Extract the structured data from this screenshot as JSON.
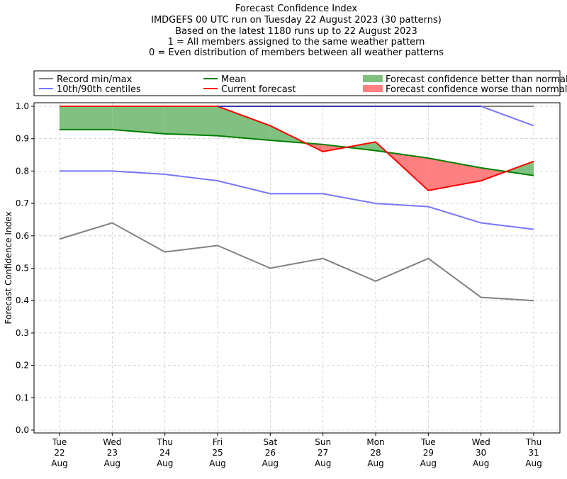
{
  "chart_data": {
    "type": "line",
    "title_lines": [
      "Forecast Confidence Index",
      "IMDGEFS 00 UTC run on Tuesday 22 August 2023 (30 patterns)",
      "Based on the latest 1180 runs up to 22 August 2023",
      "1 = All members assigned to the same weather pattern",
      "0 = Even distribution of members between all weather patterns"
    ],
    "ylabel": "Forecast Confidence Index",
    "ylim": [
      -0.01,
      1.01
    ],
    "yticks": [
      "0.0",
      "0.1",
      "0.2",
      "0.3",
      "0.4",
      "0.5",
      "0.6",
      "0.7",
      "0.8",
      "0.9",
      "1.0"
    ],
    "categories": [
      [
        "Tue",
        "22",
        "Aug"
      ],
      [
        "Wed",
        "23",
        "Aug"
      ],
      [
        "Thu",
        "24",
        "Aug"
      ],
      [
        "Fri",
        "25",
        "Aug"
      ],
      [
        "Sat",
        "26",
        "Aug"
      ],
      [
        "Sun",
        "27",
        "Aug"
      ],
      [
        "Mon",
        "28",
        "Aug"
      ],
      [
        "Tue",
        "29",
        "Aug"
      ],
      [
        "Wed",
        "30",
        "Aug"
      ],
      [
        "Thu",
        "31",
        "Aug"
      ]
    ],
    "grid": true,
    "legend_position": "top",
    "series": [
      {
        "name": "Record min/max",
        "role": "max",
        "color": "#808080",
        "values": [
          1,
          1,
          1,
          1,
          1,
          1,
          1,
          1,
          1,
          1
        ]
      },
      {
        "name": "Record min/max",
        "role": "min",
        "color": "#808080",
        "values": [
          0.59,
          0.64,
          0.55,
          0.57,
          0.5,
          0.53,
          0.46,
          0.53,
          0.41,
          0.4
        ]
      },
      {
        "name": "10th/90th centiles",
        "role": "p90",
        "color": "#7777ff",
        "values": [
          1,
          1,
          1,
          1,
          1,
          1,
          1,
          1,
          1,
          0.94
        ]
      },
      {
        "name": "10th/90th centiles",
        "role": "p10",
        "color": "#7777ff",
        "values": [
          0.8,
          0.8,
          0.79,
          0.77,
          0.73,
          0.73,
          0.7,
          0.69,
          0.64,
          0.62
        ]
      },
      {
        "name": "Mean",
        "role": "mean",
        "color": "#008000",
        "values": [
          0.928,
          0.928,
          0.915,
          0.909,
          0.895,
          0.882,
          0.863,
          0.84,
          0.81,
          0.786
        ]
      },
      {
        "name": "Current forecast",
        "role": "current",
        "color": "#ff0000",
        "values": [
          1,
          1,
          1,
          1,
          0.94,
          0.86,
          0.89,
          0.74,
          0.77,
          0.83
        ]
      }
    ],
    "legend": [
      {
        "label": "Record min/max",
        "type": "line",
        "color": "#808080"
      },
      {
        "label": "Mean",
        "type": "line",
        "color": "#008000"
      },
      {
        "label": "Forecast confidence better than normal",
        "type": "patch",
        "color": "#80c080"
      },
      {
        "label": "10th/90th centiles",
        "type": "line",
        "color": "#7777ff"
      },
      {
        "label": "Current forecast",
        "type": "line",
        "color": "#ff0000"
      },
      {
        "label": "Forecast confidence worse than normal",
        "type": "patch",
        "color": "#ff8080"
      }
    ]
  }
}
